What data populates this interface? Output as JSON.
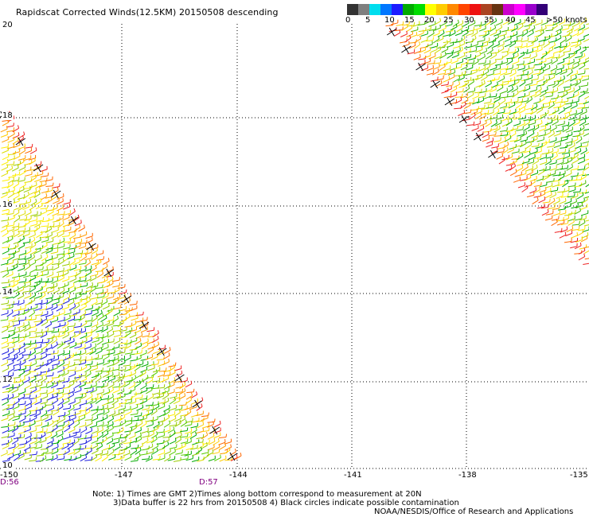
{
  "title": "Rapidscat Corrected Winds(12.5KM) 20150508 descending",
  "colorbar": {
    "colors": [
      "#333333",
      "#7f7f7f",
      "#00ddee",
      "#0077ff",
      "#1c1cff",
      "#00aa00",
      "#00dd00",
      "#ffff00",
      "#ffcc00",
      "#ff8800",
      "#ff4400",
      "#ee1111",
      "#aa4422",
      "#663311",
      "#cc00cc",
      "#ff00ff",
      "#9900cc",
      "#330077"
    ],
    "labels": [
      "0",
      "5",
      "10",
      "15",
      "20",
      "25",
      "30",
      "35",
      "40",
      "45",
      ">50 knots"
    ]
  },
  "lat_labels": [
    "20",
    "18",
    "16",
    "14",
    "12",
    "10"
  ],
  "lon_labels": [
    "-150",
    "-147",
    "-144",
    "-141",
    "-138",
    "-135"
  ],
  "time_labels": [
    "D:56",
    "D:57"
  ],
  "notes": {
    "line1": "Note: 1) Times are GMT 2)Times along bottom correspond to measurement at 20N",
    "line2": "3)Data buffer is 22 hrs from 20150508 4) Black circles indicate possible contamination",
    "credit": "NOAA/NESDIS/Office of Research and Applications"
  }
}
